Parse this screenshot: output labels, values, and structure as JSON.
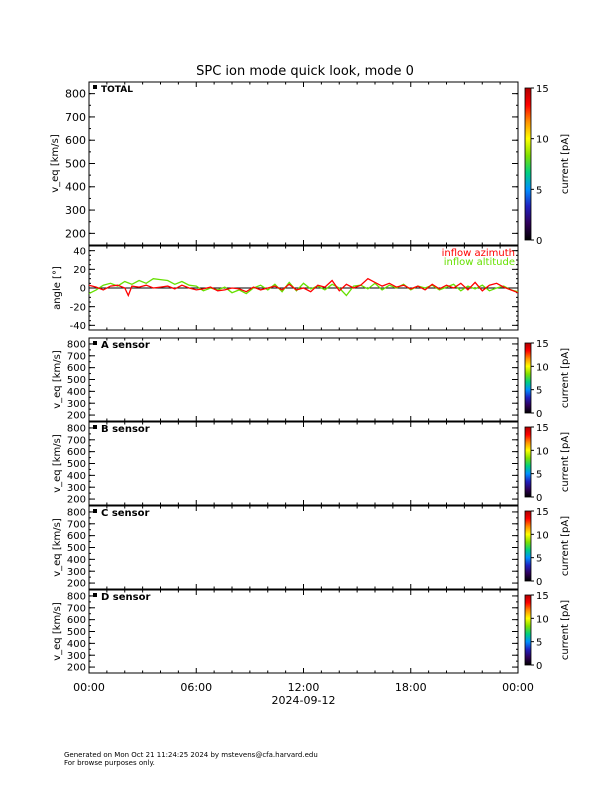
{
  "page": {
    "title": "SPC ion mode quick look, mode 0"
  },
  "footer": {
    "line1": "Generated on Mon Oct 21 11:24:25 2024 by mstevens@cfa.harvard.edu",
    "line2": "For browse purposes only."
  },
  "colors": {
    "azimuth": "#ff0000",
    "altitude": "#66e000",
    "colorbar_stops": [
      "#000000",
      "#30005a",
      "#2020c0",
      "#0090ff",
      "#00d080",
      "#80e000",
      "#ffff00",
      "#ff9000",
      "#ff0000",
      "#b00000"
    ]
  },
  "chart_data": [
    {
      "id": "total",
      "type": "heatmap",
      "label": "TOTAL",
      "ylabel": "v_eq [km/s]",
      "ylim": [
        150,
        850
      ],
      "yticks": [
        200,
        300,
        400,
        500,
        600,
        700,
        800
      ],
      "xlim_hours": [
        0,
        24
      ],
      "colorbar": {
        "label": "current [pA]",
        "range": [
          0,
          15
        ],
        "ticks": [
          0,
          5,
          10,
          15
        ]
      },
      "values": []
    },
    {
      "id": "angle",
      "type": "line",
      "ylabel": "angle [°]",
      "ylim": [
        -45,
        45
      ],
      "yticks": [
        -40,
        -20,
        0,
        20,
        40
      ],
      "xlim_hours": [
        0,
        24
      ],
      "series": [
        {
          "name": "inflow azimuth",
          "color": "#ff0000",
          "x": [
            0,
            0.4,
            0.8,
            1.2,
            1.6,
            2.0,
            2.2,
            2.4,
            2.8,
            3.2,
            3.6,
            4.0,
            4.4,
            4.8,
            5.2,
            5.6,
            6.0,
            6.4,
            6.8,
            7.2,
            7.6,
            8.0,
            8.4,
            8.8,
            9.2,
            9.6,
            10.0,
            10.4,
            10.8,
            11.2,
            11.6,
            12.0,
            12.4,
            12.8,
            13.2,
            13.6,
            14.0,
            14.4,
            14.8,
            15.2,
            15.6,
            16.0,
            16.4,
            16.8,
            17.2,
            17.6,
            18.0,
            18.4,
            18.8,
            19.2,
            19.6,
            20.0,
            20.4,
            20.8,
            21.2,
            21.6,
            22.0,
            22.4,
            22.8,
            23.2,
            23.6,
            24.0
          ],
          "values": [
            3,
            1,
            -2,
            2,
            3,
            0,
            -8,
            2,
            1,
            3,
            0,
            1,
            2,
            -1,
            3,
            0,
            -2,
            -1,
            1,
            -3,
            -2,
            0,
            -1,
            -4,
            1,
            -2,
            0,
            2,
            -2,
            4,
            -2,
            0,
            -4,
            3,
            1,
            8,
            -3,
            4,
            0,
            3,
            10,
            6,
            2,
            5,
            1,
            3,
            -1,
            2,
            -2,
            4,
            -1,
            3,
            0,
            5,
            -2,
            6,
            -3,
            3,
            5,
            1,
            -2,
            -5
          ]
        },
        {
          "name": "inflow altitude",
          "color": "#66e000",
          "x": [
            0,
            0.4,
            0.8,
            1.2,
            1.6,
            2.0,
            2.4,
            2.8,
            3.2,
            3.6,
            4.0,
            4.4,
            4.8,
            5.2,
            5.6,
            6.0,
            6.4,
            6.8,
            7.2,
            7.6,
            8.0,
            8.4,
            8.8,
            9.2,
            9.6,
            10.0,
            10.4,
            10.8,
            11.2,
            11.6,
            12.0,
            12.4,
            12.8,
            13.2,
            13.6,
            14.0,
            14.4,
            14.8,
            15.2,
            15.6,
            16.0,
            16.4,
            16.8,
            17.2,
            17.6,
            18.0,
            18.4,
            18.8,
            19.2,
            19.6,
            20.0,
            20.4,
            20.8,
            21.2,
            21.6,
            22.0,
            22.4,
            22.8,
            23.2,
            23.6,
            24.0
          ],
          "values": [
            -6,
            -2,
            3,
            5,
            2,
            7,
            4,
            8,
            5,
            10,
            9,
            8,
            4,
            7,
            3,
            2,
            -3,
            0,
            -2,
            1,
            -5,
            -2,
            -6,
            0,
            3,
            -2,
            4,
            -4,
            6,
            -3,
            5,
            -1,
            2,
            -2,
            4,
            0,
            -8,
            2,
            3,
            -1,
            5,
            -2,
            3,
            0,
            4,
            -2,
            2,
            0,
            3,
            -2,
            1,
            4,
            -3,
            2,
            -1,
            3,
            -3,
            0,
            2,
            -2,
            -4
          ]
        }
      ]
    },
    {
      "id": "sensor_a",
      "type": "heatmap",
      "label": "A sensor",
      "ylabel": "v_eq [km/s]",
      "ylim": [
        150,
        850
      ],
      "yticks": [
        200,
        300,
        400,
        500,
        600,
        700,
        800
      ],
      "xlim_hours": [
        0,
        24
      ],
      "colorbar": {
        "label": "current [pA]",
        "range": [
          0,
          15
        ],
        "ticks": [
          0,
          5,
          10,
          15
        ]
      },
      "values": []
    },
    {
      "id": "sensor_b",
      "type": "heatmap",
      "label": "B sensor",
      "ylabel": "v_eq [km/s]",
      "ylim": [
        150,
        850
      ],
      "yticks": [
        200,
        300,
        400,
        500,
        600,
        700,
        800
      ],
      "xlim_hours": [
        0,
        24
      ],
      "colorbar": {
        "label": "current [pA]",
        "range": [
          0,
          15
        ],
        "ticks": [
          0,
          5,
          10,
          15
        ]
      },
      "values": []
    },
    {
      "id": "sensor_c",
      "type": "heatmap",
      "label": "C sensor",
      "ylabel": "v_eq [km/s]",
      "ylim": [
        150,
        850
      ],
      "yticks": [
        200,
        300,
        400,
        500,
        600,
        700,
        800
      ],
      "xlim_hours": [
        0,
        24
      ],
      "colorbar": {
        "label": "current [pA]",
        "range": [
          0,
          15
        ],
        "ticks": [
          0,
          5,
          10,
          15
        ]
      },
      "values": []
    },
    {
      "id": "sensor_d",
      "type": "heatmap",
      "label": "D sensor",
      "ylabel": "v_eq [km/s]",
      "ylim": [
        150,
        850
      ],
      "yticks": [
        200,
        300,
        400,
        500,
        600,
        700,
        800
      ],
      "xlim_hours": [
        0,
        24
      ],
      "colorbar": {
        "label": "current [pA]",
        "range": [
          0,
          15
        ],
        "ticks": [
          0,
          5,
          10,
          15
        ]
      },
      "values": []
    }
  ],
  "xaxis": {
    "tick_labels": [
      "00:00",
      "06:00",
      "12:00",
      "18:00",
      "00:00"
    ],
    "tick_hours": [
      0,
      6,
      12,
      18,
      24
    ],
    "date_label": "2024-09-12"
  }
}
